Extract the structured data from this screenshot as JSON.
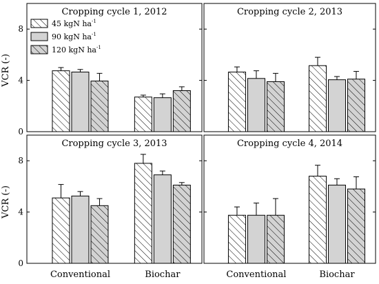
{
  "legend": {
    "items": [
      {
        "label": "45 kgN ha",
        "sup": "-1",
        "pattern": "hatch-white"
      },
      {
        "label": "90 kgN ha",
        "sup": "-1",
        "pattern": "solid-gray"
      },
      {
        "label": "120 kgN ha",
        "sup": "-1",
        "pattern": "hatch-gray"
      }
    ]
  },
  "colors": {
    "bar_gray": "#d3d3d3",
    "bar_white": "#ffffff",
    "hatch": "#000000",
    "axis": "#000000"
  },
  "chart_data": [
    {
      "type": "bar",
      "title": "Cropping cycle 1, 2012",
      "categories": [
        "Conventional",
        "Biochar"
      ],
      "ylabel": "VCR (-)",
      "ylim": [
        0,
        10
      ],
      "yticks": [
        0,
        4,
        8
      ],
      "grid": false,
      "legend_position": "top-left",
      "series": [
        {
          "name": "45 kgN ha-1",
          "values": [
            4.75,
            2.7
          ],
          "errors": [
            0.25,
            0.15
          ]
        },
        {
          "name": "90 kgN ha-1",
          "values": [
            4.65,
            2.65
          ],
          "errors": [
            0.2,
            0.3
          ]
        },
        {
          "name": "120 kgN ha-1",
          "values": [
            3.95,
            3.2
          ],
          "errors": [
            0.6,
            0.3
          ]
        }
      ]
    },
    {
      "type": "bar",
      "title": "Cropping cycle 2, 2013",
      "categories": [
        "Conventional",
        "Biochar"
      ],
      "ylim": [
        0,
        10
      ],
      "yticks": [
        0,
        4,
        8
      ],
      "grid": false,
      "series": [
        {
          "name": "45 kgN ha-1",
          "values": [
            4.65,
            5.15
          ],
          "errors": [
            0.4,
            0.65
          ]
        },
        {
          "name": "90 kgN ha-1",
          "values": [
            4.15,
            4.05
          ],
          "errors": [
            0.6,
            0.25
          ]
        },
        {
          "name": "120 kgN ha-1",
          "values": [
            3.9,
            4.1
          ],
          "errors": [
            0.65,
            0.6
          ]
        }
      ]
    },
    {
      "type": "bar",
      "title": "Cropping cycle 3, 2013",
      "categories": [
        "Conventional",
        "Biochar"
      ],
      "ylabel": "VCR (-)",
      "ylim": [
        0,
        10
      ],
      "yticks": [
        0,
        4,
        8
      ],
      "grid": false,
      "series": [
        {
          "name": "45 kgN ha-1",
          "values": [
            5.1,
            7.8
          ],
          "errors": [
            1.05,
            0.7
          ]
        },
        {
          "name": "90 kgN ha-1",
          "values": [
            5.25,
            6.9
          ],
          "errors": [
            0.35,
            0.3
          ]
        },
        {
          "name": "120 kgN ha-1",
          "values": [
            4.5,
            6.1
          ],
          "errors": [
            0.55,
            0.2
          ]
        }
      ]
    },
    {
      "type": "bar",
      "title": "Cropping cycle 4, 2014",
      "categories": [
        "Conventional",
        "Biochar"
      ],
      "ylim": [
        0,
        10
      ],
      "yticks": [
        0,
        4,
        8
      ],
      "grid": false,
      "series": [
        {
          "name": "45 kgN ha-1",
          "values": [
            3.75,
            6.8
          ],
          "errors": [
            0.65,
            0.85
          ]
        },
        {
          "name": "90 kgN ha-1",
          "values": [
            3.75,
            6.1
          ],
          "errors": [
            0.95,
            0.5
          ]
        },
        {
          "name": "120 kgN ha-1",
          "values": [
            3.75,
            5.8
          ],
          "errors": [
            1.3,
            0.95
          ]
        }
      ]
    }
  ]
}
